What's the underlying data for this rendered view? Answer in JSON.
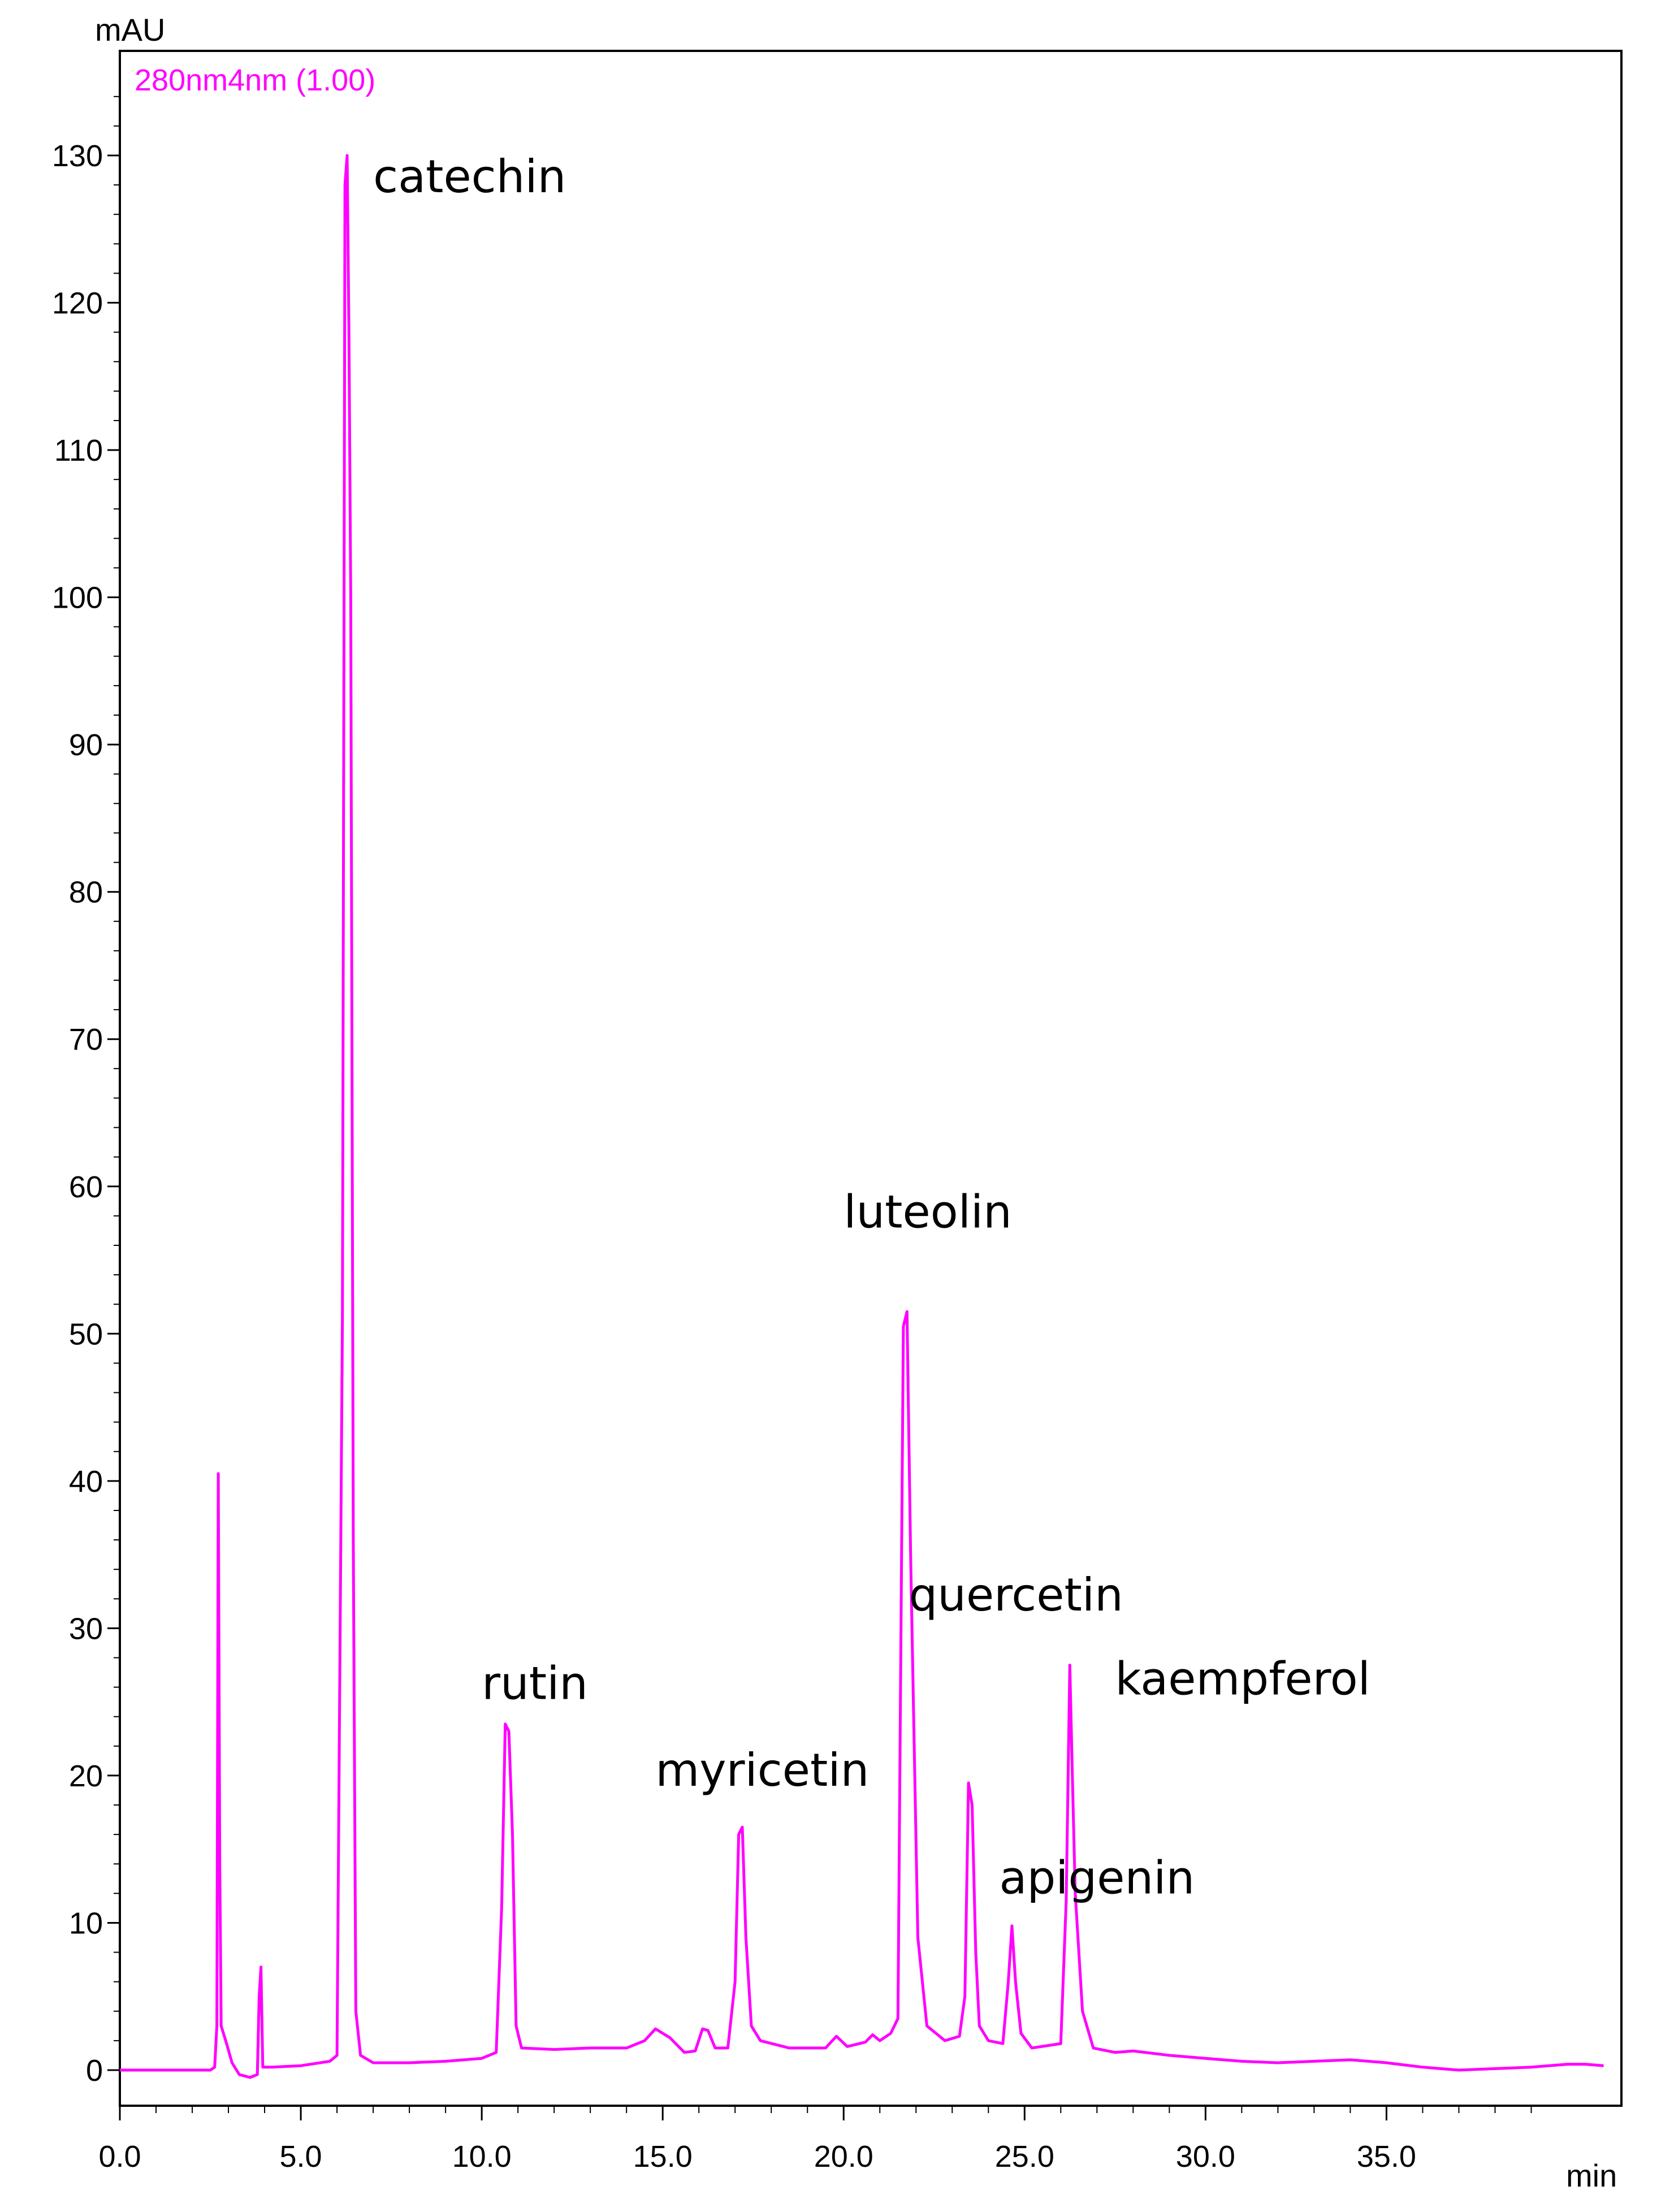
{
  "chart_data": {
    "type": "line",
    "title": "",
    "detector_label": "280nm4nm (1.00)",
    "ylabel": "mAU",
    "xlabel": "min",
    "xlim": [
      0,
      41
    ],
    "ylim": [
      -3,
      136
    ],
    "x_ticks": [
      {
        "value": 0,
        "label": "0.0"
      },
      {
        "value": 5,
        "label": "5.0"
      },
      {
        "value": 10,
        "label": "10.0"
      },
      {
        "value": 15,
        "label": "15.0"
      },
      {
        "value": 20,
        "label": "20.0"
      },
      {
        "value": 25,
        "label": "25.0"
      },
      {
        "value": 30,
        "label": "30.0"
      },
      {
        "value": 35,
        "label": "35.0"
      }
    ],
    "y_ticks": [
      {
        "value": 0,
        "label": "0"
      },
      {
        "value": 10,
        "label": "10"
      },
      {
        "value": 20,
        "label": "20"
      },
      {
        "value": 30,
        "label": "30"
      },
      {
        "value": 40,
        "label": "40"
      },
      {
        "value": 50,
        "label": "50"
      },
      {
        "value": 60,
        "label": "60"
      },
      {
        "value": 70,
        "label": "70"
      },
      {
        "value": 80,
        "label": "80"
      },
      {
        "value": 90,
        "label": "90"
      },
      {
        "value": 100,
        "label": "100"
      },
      {
        "value": 110,
        "label": "110"
      },
      {
        "value": 120,
        "label": "120"
      },
      {
        "value": 130,
        "label": "130"
      }
    ],
    "line_color": "#ff00ff",
    "series": [
      {
        "name": "280nm4nm (1.00)",
        "points": [
          [
            0.0,
            0.0
          ],
          [
            2.5,
            0.0
          ],
          [
            2.62,
            0.2
          ],
          [
            2.68,
            3.0
          ],
          [
            2.72,
            40.5
          ],
          [
            2.76,
            14.0
          ],
          [
            2.8,
            3.0
          ],
          [
            2.95,
            1.8
          ],
          [
            3.1,
            0.5
          ],
          [
            3.3,
            -0.3
          ],
          [
            3.6,
            -0.5
          ],
          [
            3.8,
            -0.3
          ],
          [
            3.85,
            5.0
          ],
          [
            3.9,
            7.0
          ],
          [
            3.95,
            0.2
          ],
          [
            4.2,
            0.2
          ],
          [
            5.0,
            0.3
          ],
          [
            5.8,
            0.6
          ],
          [
            6.0,
            1.0
          ],
          [
            6.15,
            51.0
          ],
          [
            6.22,
            128.0
          ],
          [
            6.28,
            130.0
          ],
          [
            6.33,
            118.0
          ],
          [
            6.38,
            100.0
          ],
          [
            6.45,
            36.0
          ],
          [
            6.52,
            4.0
          ],
          [
            6.65,
            1.0
          ],
          [
            7.0,
            0.5
          ],
          [
            8.0,
            0.5
          ],
          [
            9.0,
            0.6
          ],
          [
            10.0,
            0.8
          ],
          [
            10.4,
            1.2
          ],
          [
            10.55,
            11.0
          ],
          [
            10.65,
            23.5
          ],
          [
            10.75,
            23.0
          ],
          [
            10.85,
            16.0
          ],
          [
            10.95,
            3.0
          ],
          [
            11.1,
            1.5
          ],
          [
            12.0,
            1.4
          ],
          [
            13.0,
            1.5
          ],
          [
            14.0,
            1.5
          ],
          [
            14.5,
            2.0
          ],
          [
            14.8,
            2.8
          ],
          [
            15.2,
            2.2
          ],
          [
            15.6,
            1.2
          ],
          [
            15.9,
            1.3
          ],
          [
            16.1,
            2.8
          ],
          [
            16.25,
            2.7
          ],
          [
            16.45,
            1.5
          ],
          [
            16.8,
            1.5
          ],
          [
            17.0,
            6.0
          ],
          [
            17.1,
            16.0
          ],
          [
            17.2,
            16.5
          ],
          [
            17.3,
            9.0
          ],
          [
            17.45,
            3.0
          ],
          [
            17.7,
            2.0
          ],
          [
            18.5,
            1.5
          ],
          [
            19.5,
            1.5
          ],
          [
            19.8,
            2.3
          ],
          [
            20.1,
            1.6
          ],
          [
            20.6,
            1.9
          ],
          [
            20.8,
            2.4
          ],
          [
            21.0,
            2.0
          ],
          [
            21.3,
            2.5
          ],
          [
            21.5,
            3.5
          ],
          [
            21.65,
            50.5
          ],
          [
            21.75,
            51.5
          ],
          [
            21.85,
            35.0
          ],
          [
            21.92,
            26.0
          ],
          [
            22.05,
            9.0
          ],
          [
            22.3,
            3.0
          ],
          [
            22.8,
            2.0
          ],
          [
            23.2,
            2.3
          ],
          [
            23.35,
            5.0
          ],
          [
            23.45,
            19.5
          ],
          [
            23.55,
            18.0
          ],
          [
            23.65,
            8.0
          ],
          [
            23.75,
            3.0
          ],
          [
            24.0,
            2.0
          ],
          [
            24.4,
            1.8
          ],
          [
            24.55,
            6.0
          ],
          [
            24.65,
            9.8
          ],
          [
            24.75,
            6.0
          ],
          [
            24.9,
            2.5
          ],
          [
            25.2,
            1.5
          ],
          [
            26.0,
            1.8
          ],
          [
            26.15,
            11.5
          ],
          [
            26.25,
            27.5
          ],
          [
            26.32,
            20.0
          ],
          [
            26.4,
            12.0
          ],
          [
            26.6,
            4.0
          ],
          [
            26.9,
            1.5
          ],
          [
            27.5,
            1.2
          ],
          [
            28.0,
            1.3
          ],
          [
            29.0,
            1.0
          ],
          [
            30.0,
            0.8
          ],
          [
            31.0,
            0.6
          ],
          [
            32.0,
            0.5
          ],
          [
            33.0,
            0.6
          ],
          [
            34.0,
            0.7
          ],
          [
            35.0,
            0.5
          ],
          [
            36.0,
            0.2
          ],
          [
            37.0,
            0.0
          ],
          [
            38.0,
            0.1
          ],
          [
            39.0,
            0.2
          ],
          [
            40.0,
            0.4
          ],
          [
            40.5,
            0.4
          ],
          [
            41.0,
            0.3
          ]
        ]
      }
    ],
    "annotations": [
      {
        "text": "catechin",
        "x": 7.0,
        "y": 127.5
      },
      {
        "text": "rutin",
        "x": 10.0,
        "y": 25.2
      },
      {
        "text": "myricetin",
        "x": 14.8,
        "y": 19.3
      },
      {
        "text": "luteolin",
        "x": 20.0,
        "y": 57.2
      },
      {
        "text": "quercetin",
        "x": 21.8,
        "y": 31.2
      },
      {
        "text": "kaempferol",
        "x": 27.5,
        "y": 25.5
      },
      {
        "text": "apigenin",
        "x": 24.3,
        "y": 12.0
      }
    ]
  }
}
